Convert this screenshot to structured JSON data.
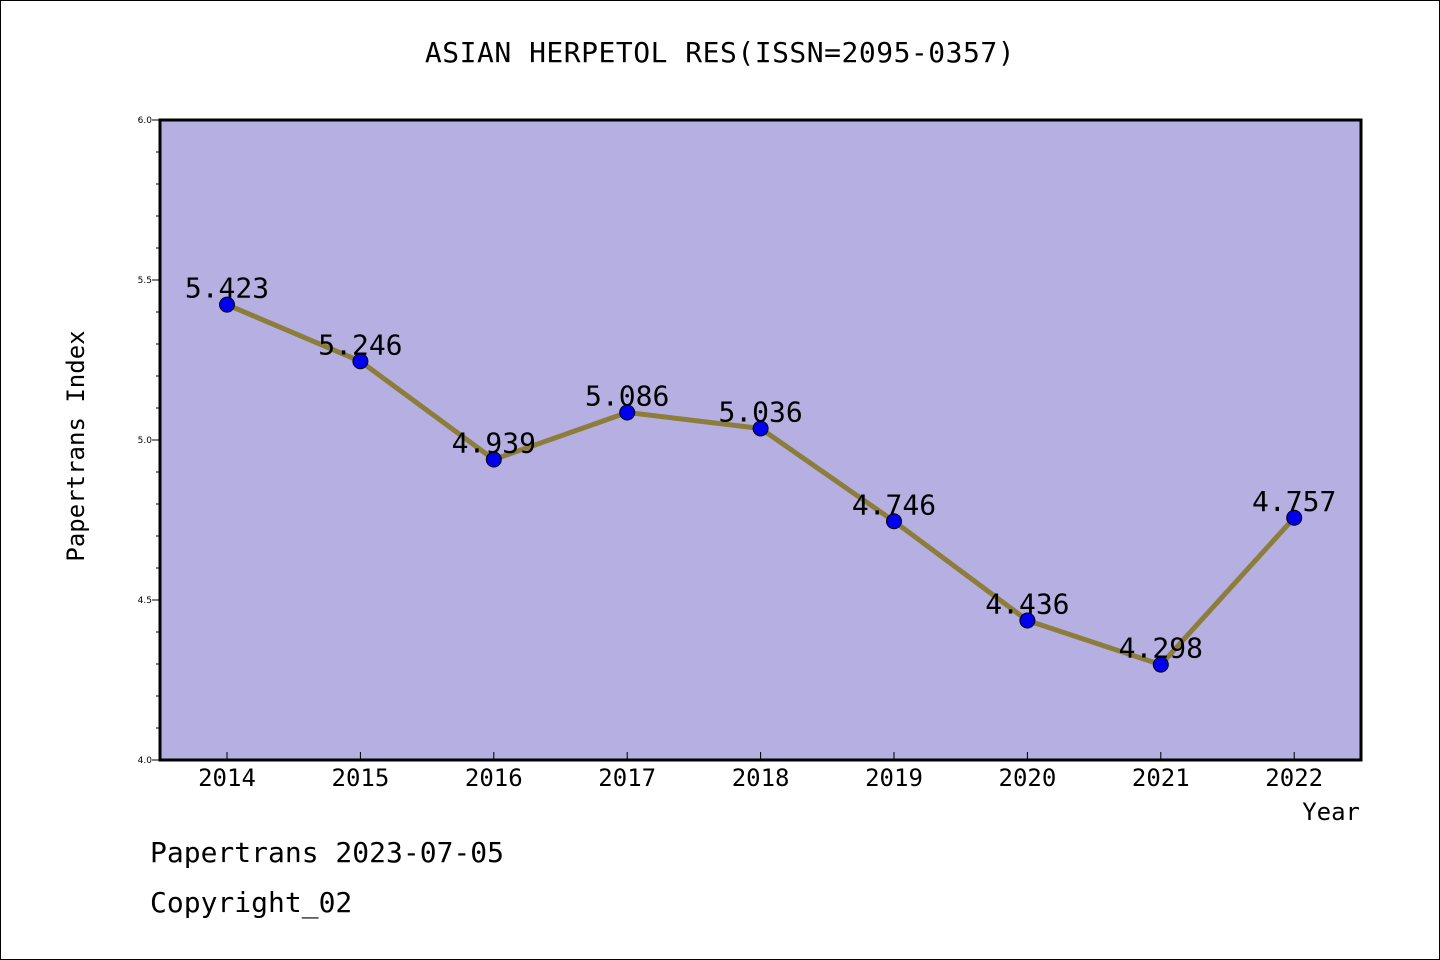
{
  "chart_data": {
    "type": "line",
    "title": "ASIAN HERPETOL RES(ISSN=2095-0357)",
    "xlabel": "Year",
    "ylabel": "Papertrans Index",
    "categories": [
      "2014",
      "2015",
      "2016",
      "2017",
      "2018",
      "2019",
      "2020",
      "2021",
      "2022"
    ],
    "values": [
      5.423,
      5.246,
      4.939,
      5.086,
      5.036,
      4.746,
      4.436,
      4.298,
      4.757
    ],
    "data_labels": [
      "5.423",
      "5.246",
      "4.939",
      "5.086",
      "5.036",
      "4.746",
      "4.436",
      "4.298",
      "4.757"
    ],
    "ylim": [
      4.0,
      6.0
    ],
    "yticks": [
      "4.0",
      "4.5",
      "5.0",
      "5.5",
      "6.0"
    ],
    "grid": false,
    "colors": {
      "plot_background": "#b5afe2",
      "line": "#8c7e3a",
      "marker": "#0000ee"
    }
  },
  "footer": {
    "line1": "Papertrans 2023-07-05",
    "line2": "Copyright_02"
  }
}
